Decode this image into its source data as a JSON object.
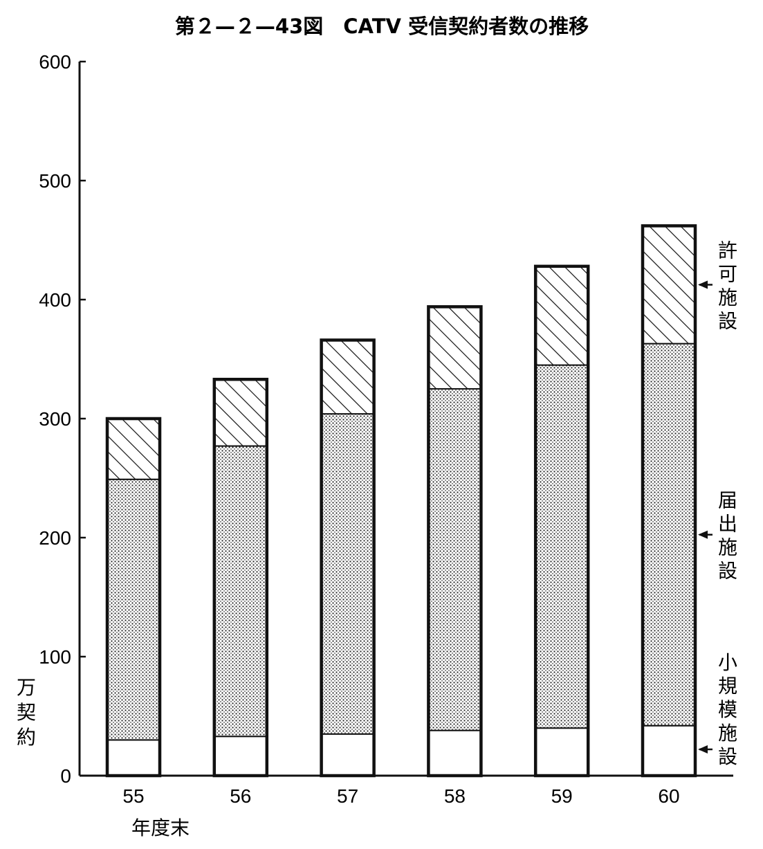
{
  "chart_data": {
    "type": "bar",
    "stacked": true,
    "title": "第２—２—43図　CATV 受信契約者数の推移",
    "ylabel": "万契約",
    "xlabel": "年度末",
    "ylim": [
      0,
      600
    ],
    "yticks": [
      0,
      100,
      200,
      300,
      400,
      500,
      600
    ],
    "categories": [
      "55",
      "56",
      "57",
      "58",
      "59",
      "60"
    ],
    "series": [
      {
        "name": "小規模施設",
        "values": [
          30,
          33,
          35,
          38,
          40,
          42
        ],
        "fill": "blank"
      },
      {
        "name": "届出施設",
        "values": [
          219,
          244,
          269,
          287,
          305,
          321
        ],
        "fill": "dotted"
      },
      {
        "name": "許可施設",
        "values": [
          51,
          56,
          62,
          69,
          83,
          99
        ],
        "fill": "hatched"
      }
    ],
    "grid": false,
    "legend": "right"
  }
}
